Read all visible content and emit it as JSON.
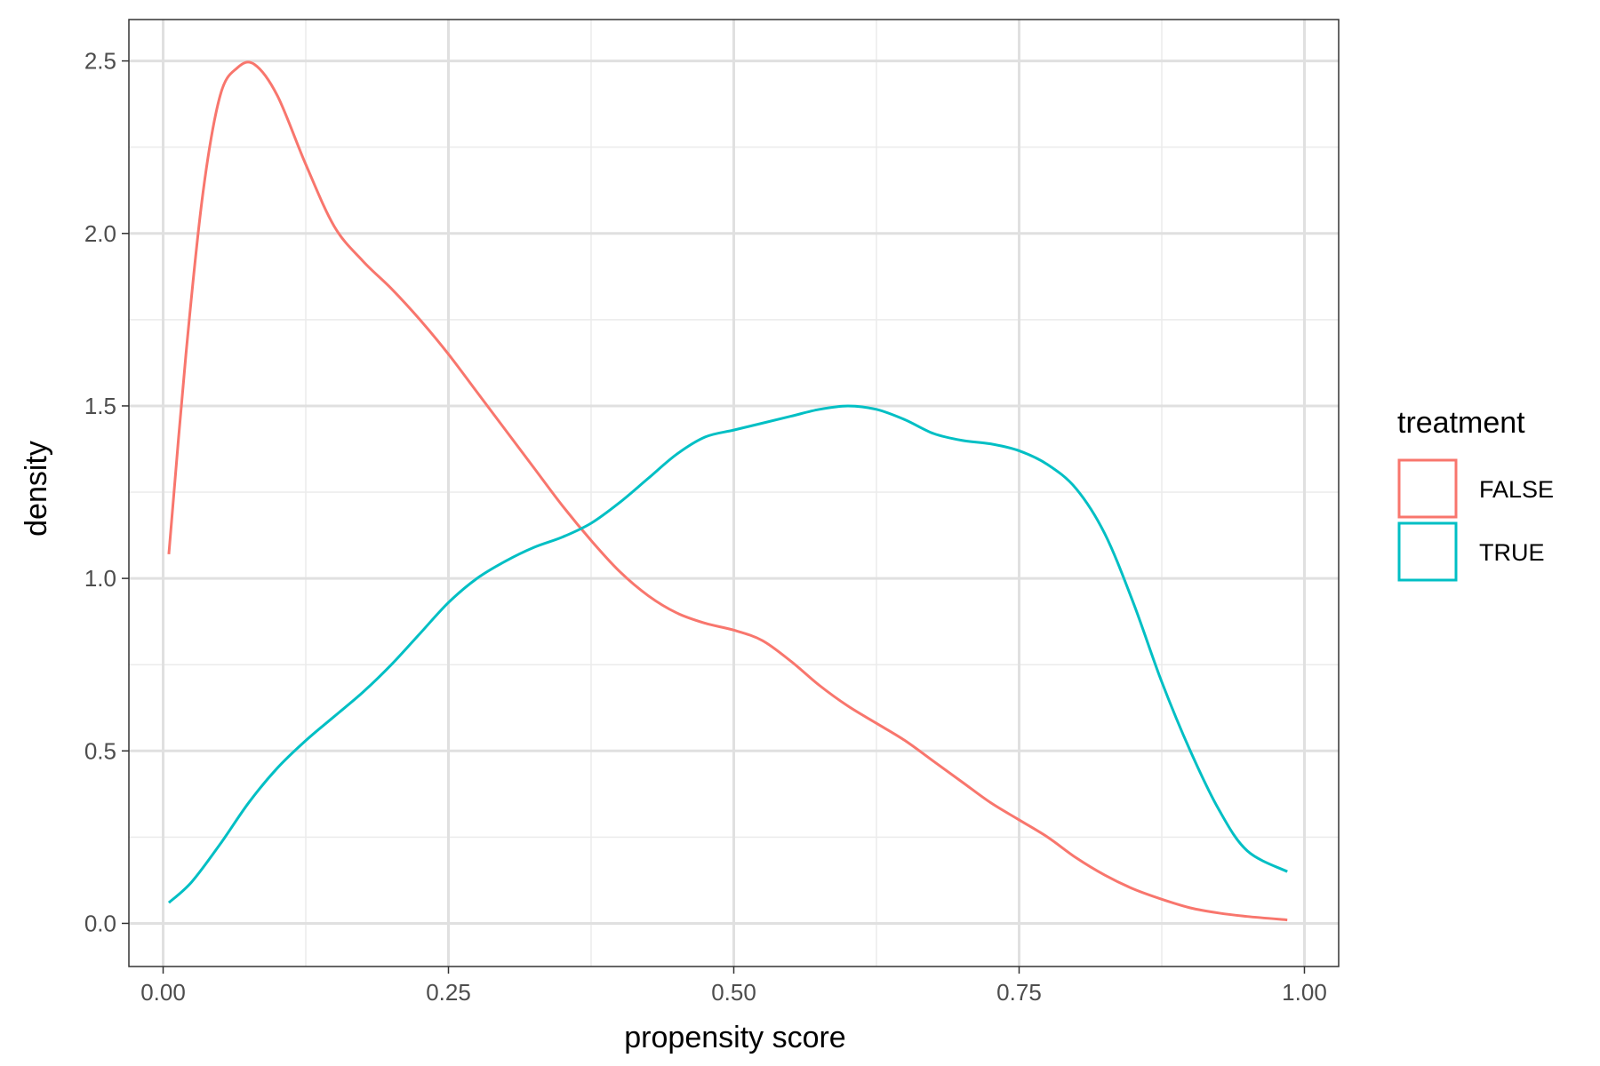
{
  "chart_data": {
    "type": "line",
    "title": "",
    "xlabel": "propensity score",
    "ylabel": "density",
    "xlim": [
      -0.03,
      1.03
    ],
    "ylim": [
      -0.125,
      2.62
    ],
    "x_ticks": [
      0.0,
      0.25,
      0.5,
      0.75,
      1.0
    ],
    "x_tick_labels": [
      "0.00",
      "0.25",
      "0.50",
      "0.75",
      "1.00"
    ],
    "y_ticks": [
      0.0,
      0.5,
      1.0,
      1.5,
      2.0,
      2.5
    ],
    "y_tick_labels": [
      "0.0",
      "0.5",
      "1.0",
      "1.5",
      "2.0",
      "2.5"
    ],
    "x_minor_ticks": [
      0.125,
      0.375,
      0.625,
      0.875
    ],
    "y_minor_ticks": [
      0.25,
      0.75,
      1.25,
      1.75,
      2.25
    ],
    "grid": true,
    "legend": {
      "title": "treatment",
      "position": "right"
    },
    "series": [
      {
        "name": "FALSE",
        "color": "#F8766D",
        "x": [
          0.005,
          0.02,
          0.035,
          0.05,
          0.065,
          0.08,
          0.1,
          0.125,
          0.15,
          0.175,
          0.2,
          0.225,
          0.25,
          0.275,
          0.3,
          0.325,
          0.35,
          0.375,
          0.4,
          0.425,
          0.45,
          0.475,
          0.5,
          0.525,
          0.55,
          0.575,
          0.6,
          0.625,
          0.65,
          0.675,
          0.7,
          0.725,
          0.75,
          0.775,
          0.8,
          0.825,
          0.85,
          0.875,
          0.9,
          0.925,
          0.95,
          0.985
        ],
        "y": [
          1.07,
          1.65,
          2.12,
          2.4,
          2.48,
          2.49,
          2.4,
          2.2,
          2.02,
          1.92,
          1.84,
          1.75,
          1.65,
          1.54,
          1.43,
          1.32,
          1.21,
          1.11,
          1.02,
          0.95,
          0.9,
          0.87,
          0.85,
          0.82,
          0.76,
          0.69,
          0.63,
          0.58,
          0.53,
          0.47,
          0.41,
          0.35,
          0.3,
          0.25,
          0.19,
          0.14,
          0.1,
          0.07,
          0.045,
          0.03,
          0.02,
          0.01
        ]
      },
      {
        "name": "TRUE",
        "color": "#00BFC4",
        "x": [
          0.005,
          0.025,
          0.05,
          0.075,
          0.1,
          0.125,
          0.15,
          0.175,
          0.2,
          0.225,
          0.25,
          0.275,
          0.3,
          0.325,
          0.35,
          0.375,
          0.4,
          0.425,
          0.45,
          0.475,
          0.5,
          0.525,
          0.55,
          0.575,
          0.6,
          0.625,
          0.65,
          0.675,
          0.7,
          0.725,
          0.75,
          0.775,
          0.8,
          0.825,
          0.85,
          0.875,
          0.9,
          0.925,
          0.95,
          0.985
        ],
        "y": [
          0.06,
          0.12,
          0.23,
          0.35,
          0.45,
          0.53,
          0.6,
          0.67,
          0.75,
          0.84,
          0.93,
          1.0,
          1.05,
          1.09,
          1.12,
          1.16,
          1.22,
          1.29,
          1.36,
          1.41,
          1.43,
          1.45,
          1.47,
          1.49,
          1.5,
          1.49,
          1.46,
          1.42,
          1.4,
          1.39,
          1.37,
          1.33,
          1.26,
          1.13,
          0.93,
          0.7,
          0.5,
          0.33,
          0.21,
          0.15
        ]
      }
    ]
  }
}
